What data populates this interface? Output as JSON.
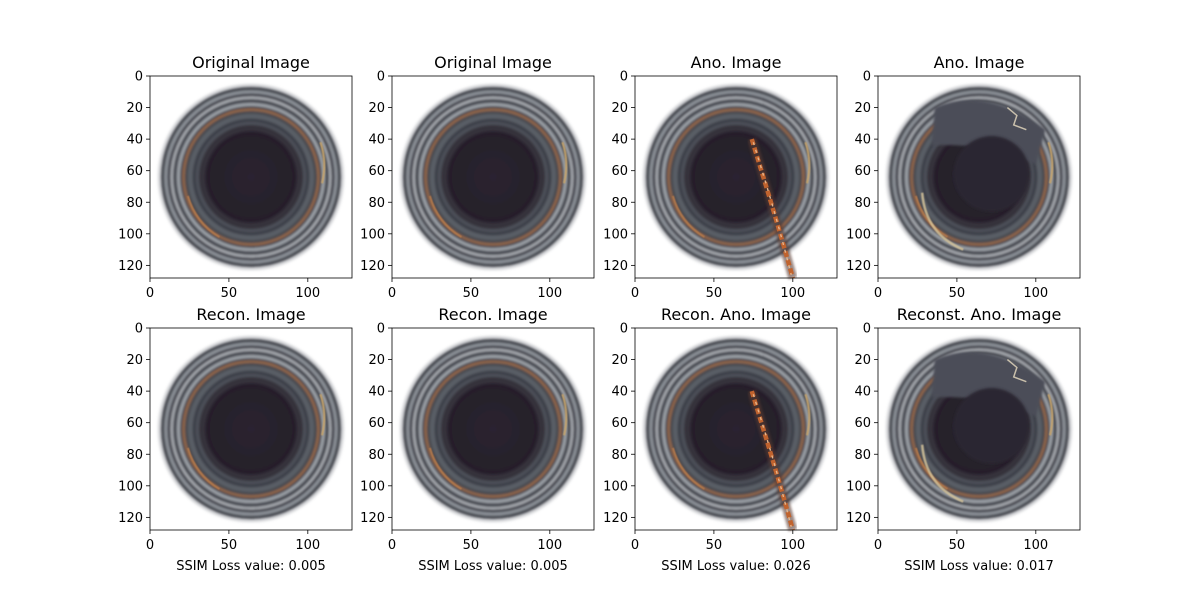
{
  "figure": {
    "axis": {
      "xlim": [
        0,
        128
      ],
      "ylim": [
        128,
        0
      ],
      "xticks": [
        0,
        50,
        100
      ],
      "yticks": [
        0,
        20,
        40,
        60,
        80,
        100,
        120
      ]
    },
    "panels": [
      {
        "title": "Original Image",
        "xlabel": "",
        "anomaly": "none"
      },
      {
        "title": "Original Image",
        "xlabel": "",
        "anomaly": "none"
      },
      {
        "title": "Ano. Image",
        "xlabel": "",
        "anomaly": "crack"
      },
      {
        "title": "Ano. Image",
        "xlabel": "",
        "anomaly": "broken"
      },
      {
        "title": "Recon. Image",
        "xlabel": "SSIM Loss value: 0.005",
        "anomaly": "none"
      },
      {
        "title": "Recon. Image",
        "xlabel": "SSIM Loss value: 0.005",
        "anomaly": "none"
      },
      {
        "title": "Recon. Ano. Image",
        "xlabel": "SSIM Loss value: 0.026",
        "anomaly": "crack"
      },
      {
        "title": "Reconst. Ano. Image",
        "xlabel": "SSIM Loss value: 0.017",
        "anomaly": "broken"
      }
    ],
    "colors": {
      "background": "#ffffff",
      "bottle_outer": "#3a3c44",
      "bottle_ring_light": "#a7acb2",
      "bottle_inner": "#2b2430",
      "rust_ring": "#9a6a4a",
      "crack": "#c0632e",
      "axis": "#000000"
    }
  }
}
